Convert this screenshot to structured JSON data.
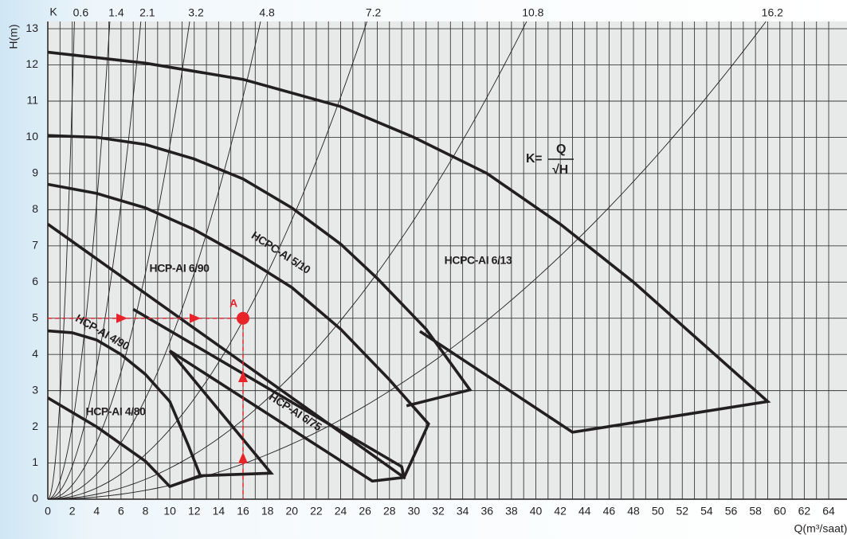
{
  "chart_data": {
    "type": "line",
    "xlabel": "Q(m³/saat)",
    "ylabel": "H(m)",
    "xlim": [
      0,
      65.5
    ],
    "ylim": [
      0,
      13.2
    ],
    "xticks": [
      0,
      2,
      4,
      6,
      8,
      10,
      12,
      14,
      16,
      18,
      20,
      22,
      24,
      26,
      28,
      30,
      32,
      34,
      36,
      38,
      40,
      42,
      44,
      46,
      48,
      50,
      52,
      54,
      56,
      58,
      60,
      62,
      64
    ],
    "yticks": [
      0,
      1,
      2,
      3,
      4,
      5,
      6,
      7,
      8,
      9,
      10,
      11,
      12,
      13
    ],
    "grid": true,
    "k_curves": {
      "label": "K",
      "values": [
        0.6,
        1.4,
        2.1,
        3.2,
        4.8,
        7.2,
        10.8,
        16.2
      ]
    },
    "formula": {
      "lhs": "K=",
      "numerator": "Q",
      "denominator": "√H"
    },
    "point": {
      "label": "A",
      "x": 16,
      "y": 5,
      "color": "#e8242b"
    },
    "series": [
      {
        "name": "HCPC-AI 6/13",
        "color": "#231f20",
        "x": [
          0,
          8,
          16,
          24,
          30,
          36,
          42,
          48,
          54,
          59,
          43,
          30.5
        ],
        "values": [
          12.35,
          12.05,
          11.6,
          10.85,
          10.0,
          9.0,
          7.6,
          6.0,
          4.2,
          2.7,
          1.85,
          4.64
        ]
      },
      {
        "name": "HCPC-AI 5/10",
        "color": "#231f20",
        "x": [
          0,
          4,
          8,
          12,
          16,
          20,
          24,
          27,
          29,
          31,
          34.6,
          29.4
        ],
        "values": [
          10.05,
          10.0,
          9.8,
          9.4,
          8.85,
          8.05,
          7.05,
          6.1,
          5.4,
          4.7,
          3.02,
          2.58
        ]
      },
      {
        "name": "HCP-AI 6/90",
        "color": "#231f20",
        "x": [
          0,
          4,
          8,
          12,
          16,
          20,
          24,
          28,
          31.2,
          29.2,
          0
        ],
        "values": [
          8.7,
          8.45,
          8.05,
          7.45,
          6.7,
          5.85,
          4.7,
          3.3,
          2.08,
          0.6,
          7.6
        ]
      },
      {
        "name": "HCP-AI 6/75",
        "color": "#231f20",
        "x": [
          7,
          29,
          29.2,
          26.6,
          10
        ],
        "values": [
          5.25,
          0.9,
          0.6,
          0.5,
          4.1
        ]
      },
      {
        "name": "HCP-AI 4/90",
        "color": "#231f20",
        "x": [
          0,
          2,
          4,
          6,
          8,
          10,
          11.5,
          12.5,
          18.3,
          10
        ],
        "values": [
          4.65,
          4.6,
          4.4,
          4.0,
          3.45,
          2.7,
          1.5,
          0.65,
          0.72,
          4.1
        ]
      },
      {
        "name": "HCP-AI 4/80",
        "color": "#231f20",
        "x": [
          0,
          4,
          8,
          10,
          12.5
        ],
        "values": [
          2.8,
          2.0,
          1.05,
          0.35,
          0.65
        ]
      }
    ]
  }
}
